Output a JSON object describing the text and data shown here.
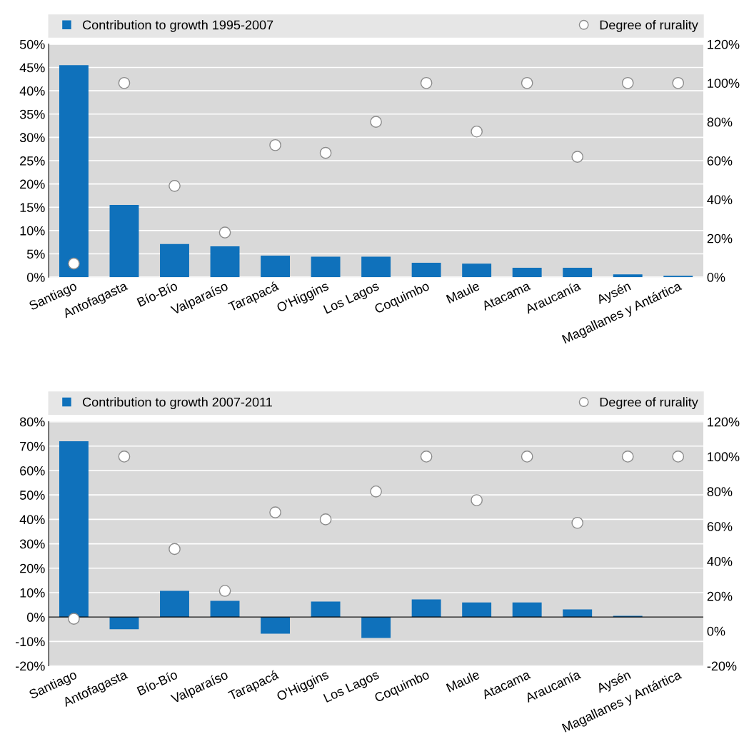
{
  "chart_data": [
    {
      "type": "bar",
      "categories": [
        "Santiago",
        "Antofagasta",
        "Bío-Bío",
        "Valparaíso",
        "Tarapacá",
        "O'Higgins",
        "Los Lagos",
        "Coquimbo",
        "Maule",
        "Atacama",
        "Araucanía",
        "Aysén",
        "Magallanes y Antártica"
      ],
      "series": [
        {
          "name": "Contribution to growth 1995-2007",
          "axis": "y",
          "color": "#0f71bb",
          "values": [
            45.5,
            15.5,
            7.1,
            6.6,
            4.6,
            4.4,
            4.4,
            3.1,
            2.9,
            2.0,
            2.0,
            0.6,
            0.3
          ]
        },
        {
          "name": "Degree of rurality",
          "type": "scatter",
          "axis": "y2",
          "color": "#ffffff",
          "marker": "circle",
          "values": [
            7,
            100,
            47,
            23,
            68,
            64,
            80,
            100,
            75,
            100,
            62,
            100,
            100
          ]
        }
      ],
      "ylim": [
        0,
        50
      ],
      "yticks": [
        {
          "value": 0,
          "label": "0%"
        },
        {
          "value": 5,
          "label": "5%"
        },
        {
          "value": 10,
          "label": "10%"
        },
        {
          "value": 15,
          "label": "15%"
        },
        {
          "value": 20,
          "label": "20%"
        },
        {
          "value": 25,
          "label": "25%"
        },
        {
          "value": 30,
          "label": "30%"
        },
        {
          "value": 35,
          "label": "35%"
        },
        {
          "value": 40,
          "label": "40%"
        },
        {
          "value": 45,
          "label": "45%"
        },
        {
          "value": 50,
          "label": "50%"
        }
      ],
      "y2lim": [
        0,
        120
      ],
      "y2ticks": [
        {
          "value": 0,
          "label": "0%"
        },
        {
          "value": 20,
          "label": "20%"
        },
        {
          "value": 40,
          "label": "40%"
        },
        {
          "value": 60,
          "label": "60%"
        },
        {
          "value": 80,
          "label": "80%"
        },
        {
          "value": 100,
          "label": "100%"
        },
        {
          "value": 120,
          "label": "120%"
        }
      ],
      "grid": "y",
      "legend": "top"
    },
    {
      "type": "bar",
      "categories": [
        "Santiago",
        "Antofagasta",
        "Bío-Bío",
        "Valparaíso",
        "Tarapacá",
        "O'Higgins",
        "Los Lagos",
        "Coquimbo",
        "Maule",
        "Atacama",
        "Araucanía",
        "Aysén",
        "Magallanes y Antártica"
      ],
      "series": [
        {
          "name": "Contribution to growth 2007-2011",
          "axis": "y",
          "color": "#0f71bb",
          "values": [
            72,
            -5,
            10.7,
            6.6,
            -6.8,
            6.3,
            -8.6,
            7.2,
            6.0,
            6.0,
            3.1,
            0.5,
            0
          ]
        },
        {
          "name": "Degree of rurality",
          "type": "scatter",
          "axis": "y2",
          "color": "#ffffff",
          "marker": "circle",
          "values": [
            7,
            100,
            47,
            23,
            68,
            64,
            80,
            100,
            75,
            100,
            62,
            100,
            100
          ]
        }
      ],
      "ylim": [
        -20,
        80
      ],
      "yticks": [
        {
          "value": -20,
          "label": "-20%"
        },
        {
          "value": -10,
          "label": "-10%"
        },
        {
          "value": 0,
          "label": "0%"
        },
        {
          "value": 10,
          "label": "10%"
        },
        {
          "value": 20,
          "label": "20%"
        },
        {
          "value": 30,
          "label": "30%"
        },
        {
          "value": 40,
          "label": "40%"
        },
        {
          "value": 50,
          "label": "50%"
        },
        {
          "value": 60,
          "label": "60%"
        },
        {
          "value": 70,
          "label": "70%"
        },
        {
          "value": 80,
          "label": "80%"
        }
      ],
      "y2lim": [
        -20,
        120
      ],
      "y2ticks": [
        {
          "value": -20,
          "label": "-20%"
        },
        {
          "value": 0,
          "label": "0%"
        },
        {
          "value": 20,
          "label": "20%"
        },
        {
          "value": 40,
          "label": "40%"
        },
        {
          "value": 60,
          "label": "60%"
        },
        {
          "value": 80,
          "label": "80%"
        },
        {
          "value": 100,
          "label": "100%"
        },
        {
          "value": 120,
          "label": "120%"
        }
      ],
      "grid": "y",
      "legend": "top"
    }
  ]
}
